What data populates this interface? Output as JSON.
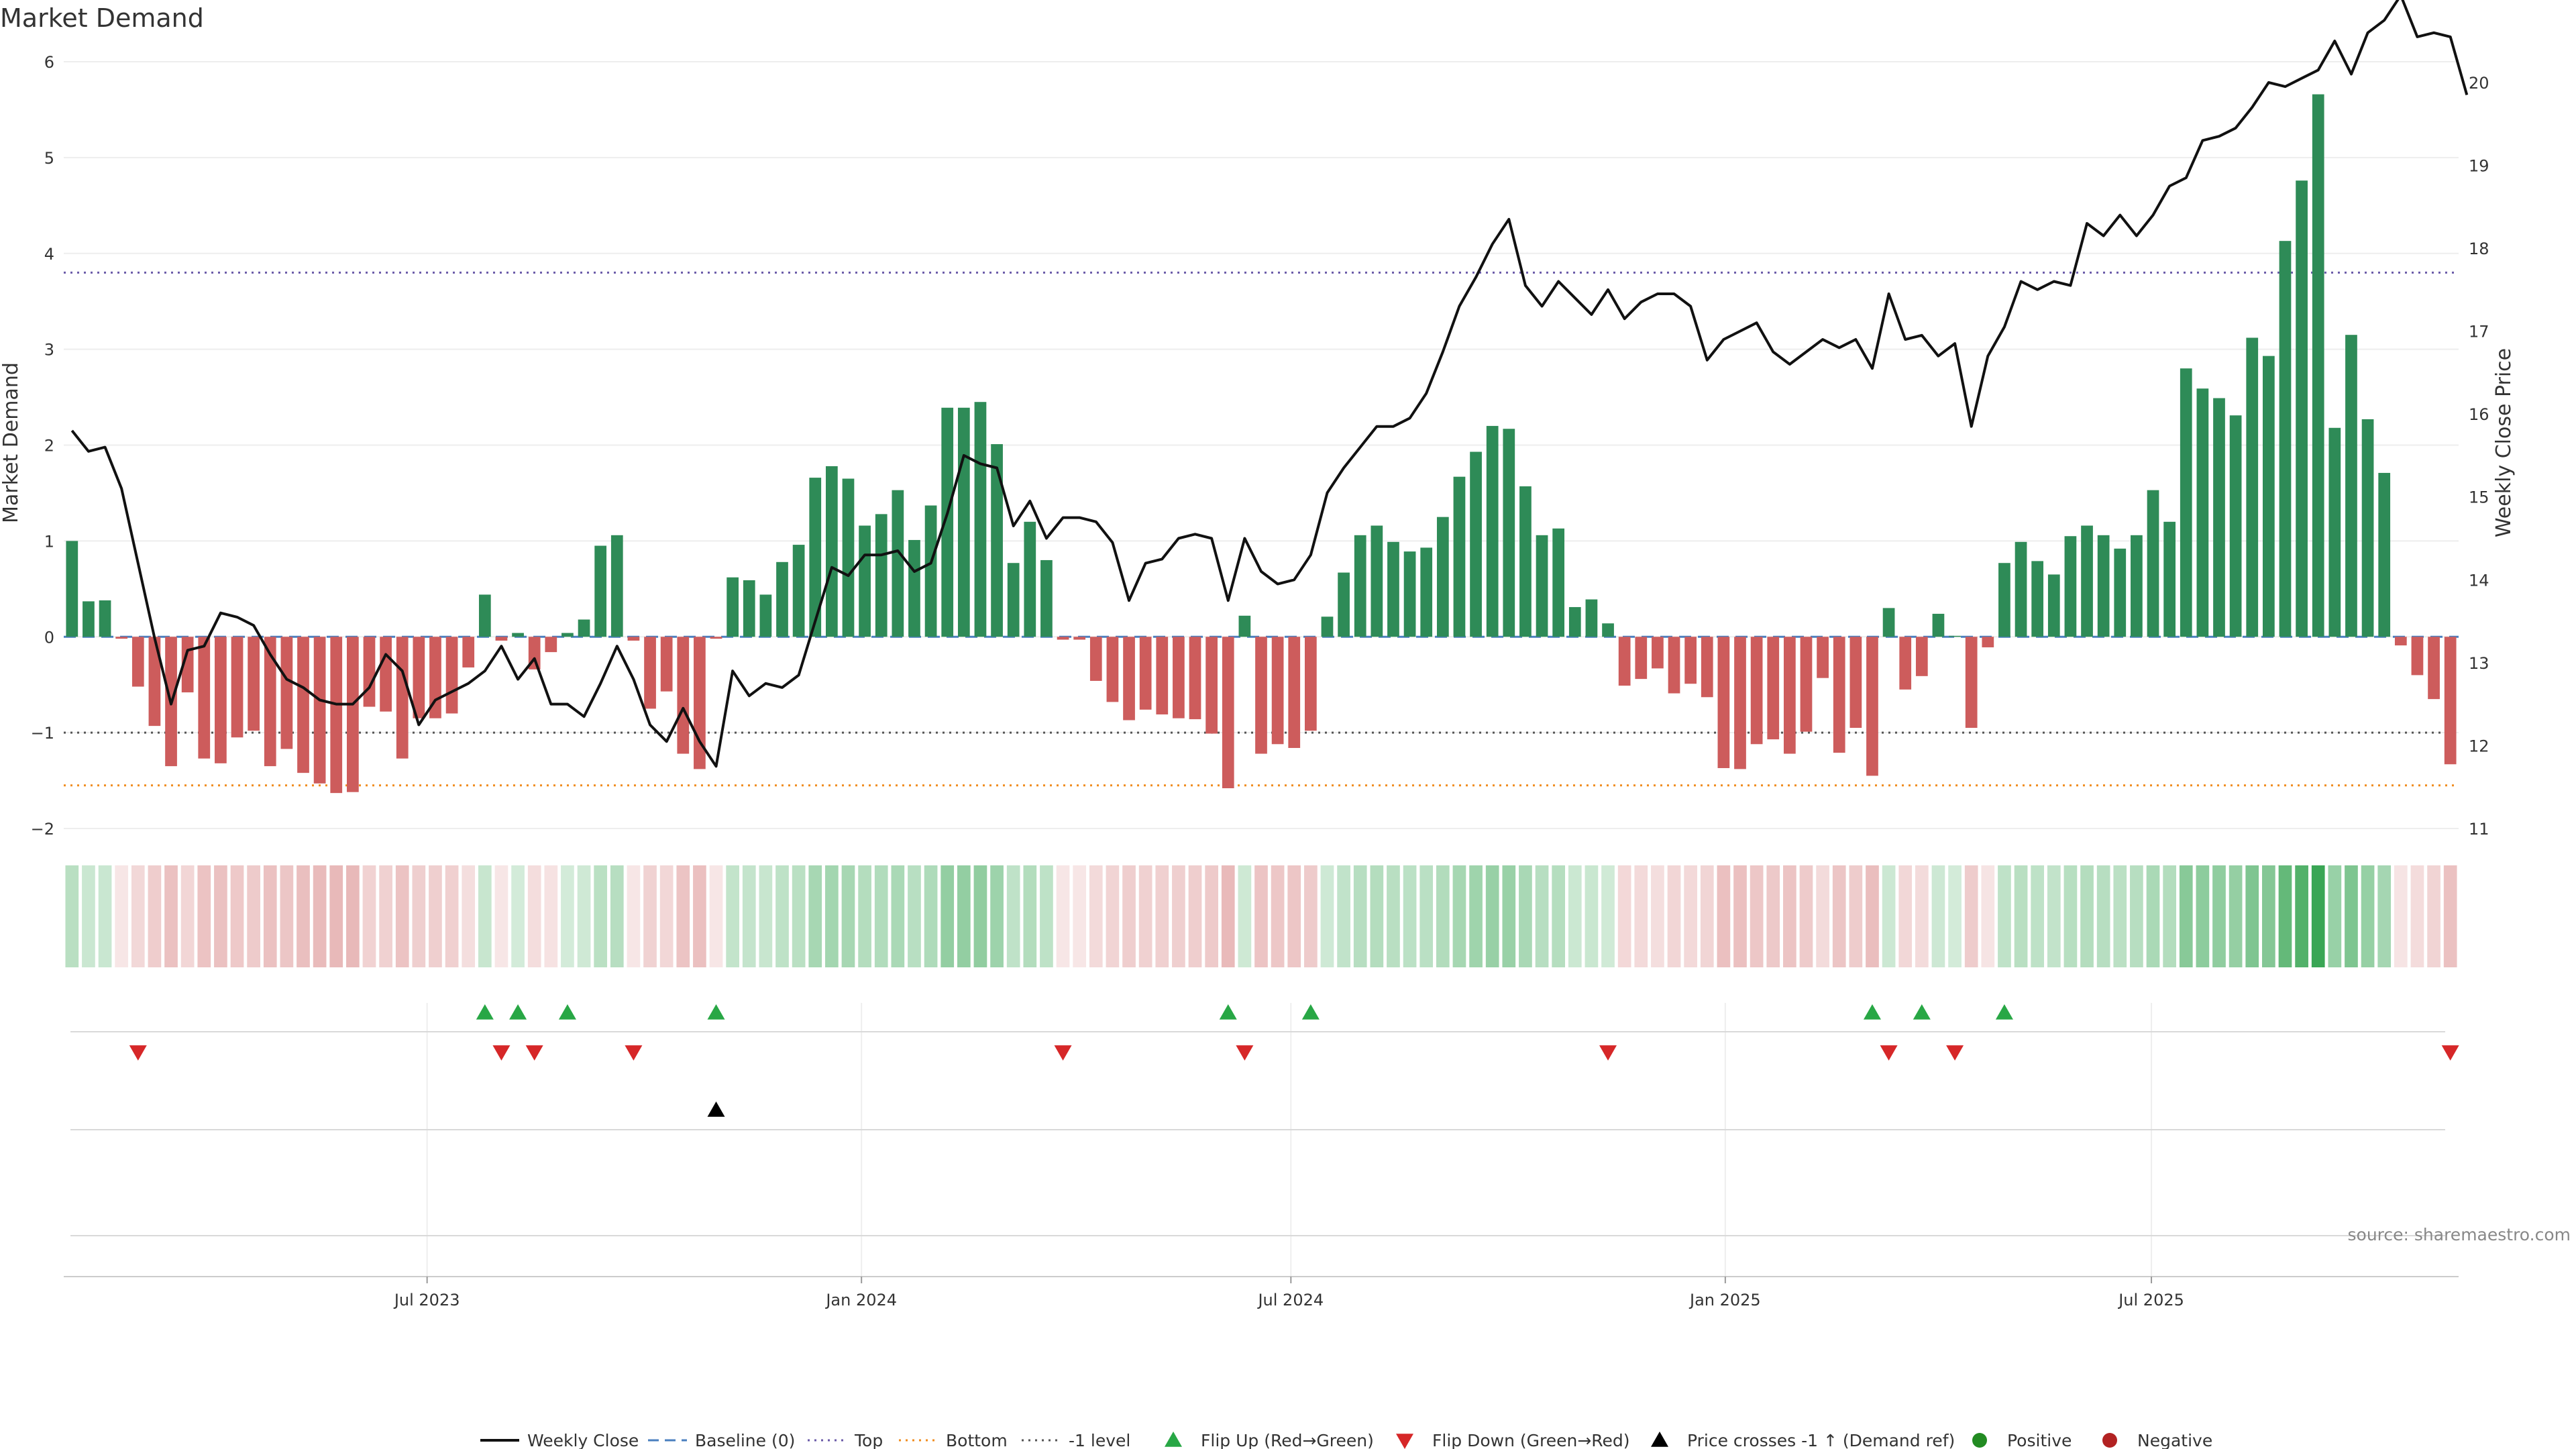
{
  "colors": {
    "positive": "#2e8b57",
    "negative": "#cd5c5c",
    "price": "#111111",
    "top_line": "#6a5aa8",
    "bottom_line": "#f08c1e",
    "minus_one_line": "#555555",
    "baseline": "#4a7fbf",
    "flip_up": "#28a745",
    "flip_down": "#d62728",
    "cross": "#000000",
    "legend_positive": "#228b22",
    "legend_negative": "#b22222"
  },
  "chart_data": {
    "type": "bar",
    "title": "Market Demand",
    "ylabel": "Market Demand",
    "y2label": "Weekly Close Price",
    "source": "source: sharemaestro.com",
    "ylim": [
      -2,
      6
    ],
    "y2lim": [
      11,
      20.25
    ],
    "yticks": [
      6,
      5,
      4,
      3,
      2,
      1,
      0,
      -1,
      -2
    ],
    "yticklabels": [
      "6",
      "5",
      "4",
      "3",
      "2",
      "1",
      "0",
      "−1",
      "−2"
    ],
    "y2ticks": [
      20,
      19,
      18,
      17,
      16,
      15,
      14,
      13,
      12,
      11
    ],
    "y2ticklabels": [
      "20",
      "19",
      "18",
      "17",
      "16",
      "15",
      "14",
      "13",
      "12",
      "11"
    ],
    "x_start_week": 0,
    "xticks": [
      {
        "week": 21.5,
        "label": "Jul 2023"
      },
      {
        "week": 47.8,
        "label": "Jan 2024"
      },
      {
        "week": 73.8,
        "label": "Jul 2024"
      },
      {
        "week": 100.1,
        "label": "Jan 2025"
      },
      {
        "week": 125.9,
        "label": "Jul 2025"
      }
    ],
    "levels": {
      "top": 3.8,
      "bottom": -1.55,
      "minus_one": -1,
      "baseline": 0
    },
    "demand": [
      1.0,
      0.37,
      0.38,
      -0.02,
      -0.52,
      -0.93,
      -1.35,
      -0.58,
      -1.27,
      -1.32,
      -1.05,
      -0.98,
      -1.35,
      -1.17,
      -1.42,
      -1.53,
      -1.63,
      -1.62,
      -0.73,
      -0.78,
      -1.27,
      -0.85,
      -0.85,
      -0.8,
      -0.32,
      0.44,
      -0.04,
      0.04,
      -0.34,
      -0.16,
      0.04,
      0.18,
      0.95,
      1.06,
      -0.04,
      -0.75,
      -0.57,
      -1.22,
      -1.38,
      -0.02,
      0.62,
      0.59,
      0.44,
      0.78,
      0.96,
      1.66,
      1.78,
      1.65,
      1.16,
      1.28,
      1.53,
      1.01,
      1.37,
      2.39,
      2.39,
      2.45,
      2.01,
      0.77,
      1.2,
      0.8,
      -0.03,
      -0.03,
      -0.46,
      -0.68,
      -0.87,
      -0.76,
      -0.81,
      -0.85,
      -0.86,
      -1.01,
      -1.58,
      0.22,
      -1.22,
      -1.12,
      -1.16,
      -0.98,
      0.21,
      0.67,
      1.06,
      1.16,
      0.99,
      0.89,
      0.93,
      1.25,
      1.67,
      1.93,
      2.2,
      2.17,
      1.57,
      1.06,
      1.13,
      0.31,
      0.39,
      0.14,
      -0.51,
      -0.44,
      -0.33,
      -0.59,
      -0.49,
      -0.63,
      -1.37,
      -1.38,
      -1.12,
      -1.07,
      -1.22,
      -0.99,
      -0.43,
      -1.21,
      -0.95,
      -1.45,
      0.3,
      -0.55,
      -0.41,
      0.24,
      0.01,
      -0.95,
      -0.11,
      0.77,
      0.99,
      0.79,
      0.65,
      1.05,
      1.16,
      1.06,
      0.92,
      1.06,
      1.53,
      1.2,
      2.8,
      2.59,
      2.49,
      2.31,
      3.12,
      2.93,
      4.13,
      4.76,
      5.66,
      2.18,
      3.15,
      2.27,
      1.71,
      -0.09,
      -0.4,
      -0.65,
      -1.33
    ],
    "price": [
      15.8,
      15.55,
      15.6,
      15.1,
      14.2,
      13.3,
      12.5,
      13.15,
      13.2,
      13.6,
      13.55,
      13.45,
      13.1,
      12.8,
      12.7,
      12.55,
      12.5,
      12.5,
      12.7,
      13.1,
      12.9,
      12.25,
      12.55,
      12.65,
      12.75,
      12.9,
      13.2,
      12.8,
      13.05,
      12.5,
      12.5,
      12.35,
      12.75,
      13.2,
      12.8,
      12.25,
      12.05,
      12.45,
      12.05,
      11.75,
      12.9,
      12.6,
      12.75,
      12.7,
      12.85,
      13.5,
      14.15,
      14.05,
      14.3,
      14.3,
      14.35,
      14.1,
      14.2,
      14.8,
      15.5,
      15.4,
      15.35,
      14.65,
      14.95,
      14.5,
      14.75,
      14.75,
      14.7,
      14.45,
      13.75,
      14.2,
      14.25,
      14.5,
      14.55,
      14.5,
      13.75,
      14.5,
      14.1,
      13.95,
      14.0,
      14.3,
      15.05,
      15.35,
      15.6,
      15.85,
      15.85,
      15.95,
      16.25,
      16.75,
      17.3,
      17.65,
      18.05,
      18.35,
      17.55,
      17.3,
      17.6,
      17.4,
      17.2,
      17.5,
      17.15,
      17.35,
      17.45,
      17.45,
      17.3,
      16.65,
      16.9,
      17.0,
      17.1,
      16.75,
      16.6,
      16.75,
      16.9,
      16.8,
      16.9,
      16.55,
      17.45,
      16.9,
      16.95,
      16.7,
      16.85,
      15.85,
      16.7,
      17.05,
      17.6,
      17.5,
      17.6,
      17.55,
      18.3,
      18.15,
      18.4,
      18.15,
      18.4,
      18.75,
      18.85,
      19.3,
      19.35,
      19.45,
      19.7,
      20.0,
      19.95,
      20.05,
      20.15,
      20.5,
      20.1,
      20.6,
      20.75,
      21.05,
      20.55,
      20.6,
      20.55,
      19.85
    ],
    "flip_up": [
      25,
      27,
      30,
      39,
      70,
      75,
      109,
      112,
      117
    ],
    "flip_down": [
      4,
      26,
      28,
      34,
      60,
      71,
      93,
      110,
      114,
      144
    ],
    "price_cross": [
      39
    ],
    "legend": [
      {
        "kind": "line-solid",
        "label": "Weekly Close"
      },
      {
        "kind": "line-dash",
        "label": "Baseline (0)"
      },
      {
        "kind": "line-dot-top",
        "label": "Top"
      },
      {
        "kind": "line-dot-bottom",
        "label": "Bottom"
      },
      {
        "kind": "line-dot-minus",
        "label": "-1 level"
      },
      {
        "kind": "tri-up-green",
        "label": "Flip Up (Red→Green)"
      },
      {
        "kind": "tri-down-red",
        "label": "Flip Down (Green→Red)"
      },
      {
        "kind": "tri-up-black",
        "label": "Price crosses -1 ↑ (Demand ref)"
      },
      {
        "kind": "dot-green",
        "label": "Positive"
      },
      {
        "kind": "dot-red",
        "label": "Negative"
      }
    ]
  }
}
